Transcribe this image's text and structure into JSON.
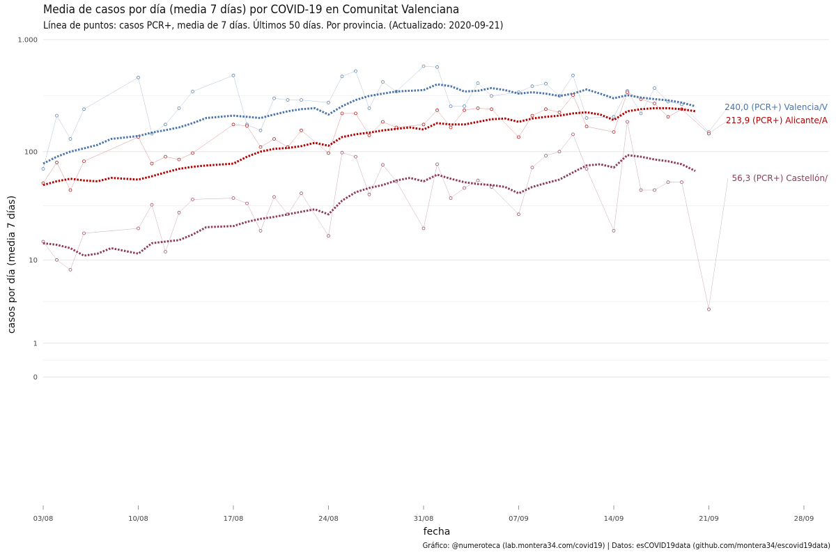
{
  "header": {
    "title": "Media de casos por día (media 7 días) por COVID-19 en Comunitat Valenciana",
    "subtitle": "Línea de puntos: casos PCR+, media de 7 días. Últimos 50 días. Por provincia. (Actualizado: 2020-09-21)"
  },
  "caption": "Gráfico: @numeroteca (lab.montera34.com/covid19) | Datos: esCOVID19data (github.com/montera34/escovid19data)",
  "chart_data": {
    "type": "line",
    "title": "Media de casos por día (media 7 días) por COVID-19 en Comunitat Valenciana",
    "xlabel": "fecha",
    "ylabel": "casos por día (media 7 días)",
    "y_scale": "log",
    "xlim": [
      "2020-08-03",
      "2020-09-30"
    ],
    "x_ticks": [
      {
        "date": "2020-08-03",
        "label": "03/08"
      },
      {
        "date": "2020-08-10",
        "label": "10/08"
      },
      {
        "date": "2020-08-17",
        "label": "17/08"
      },
      {
        "date": "2020-08-24",
        "label": "24/08"
      },
      {
        "date": "2020-08-31",
        "label": "31/08"
      },
      {
        "date": "2020-09-07",
        "label": "07/09"
      },
      {
        "date": "2020-09-14",
        "label": "14/09"
      },
      {
        "date": "2020-09-21",
        "label": "21/09"
      },
      {
        "date": "2020-09-28",
        "label": "28/09"
      }
    ],
    "y_ticks": [
      {
        "value": 0,
        "label": "0"
      },
      {
        "value": 1,
        "label": "1"
      },
      {
        "value": 10,
        "label": "10"
      },
      {
        "value": 100,
        "label": "100"
      },
      {
        "value": 1000,
        "label": "1.000"
      }
    ],
    "grid": true,
    "series": [
      {
        "name": "Valencia/V",
        "end_label": "240,0 (PCR+) Valencia/V",
        "color": "#4a74aa",
        "daily": [
          [
            "2020-08-03",
            70
          ],
          [
            "2020-08-04",
            210
          ],
          [
            "2020-08-05",
            130
          ],
          [
            "2020-08-06",
            240
          ],
          [
            "2020-08-10",
            460
          ],
          [
            "2020-08-11",
            145
          ],
          [
            "2020-08-12",
            175
          ],
          [
            "2020-08-13",
            245
          ],
          [
            "2020-08-14",
            345
          ],
          [
            "2020-08-17",
            480
          ],
          [
            "2020-08-18",
            175
          ],
          [
            "2020-08-19",
            155
          ],
          [
            "2020-08-20",
            300
          ],
          [
            "2020-08-21",
            290
          ],
          [
            "2020-08-22",
            290
          ],
          [
            "2020-08-24",
            275
          ],
          [
            "2020-08-25",
            470
          ],
          [
            "2020-08-26",
            525
          ],
          [
            "2020-08-27",
            245
          ],
          [
            "2020-08-28",
            420
          ],
          [
            "2020-08-29",
            345
          ],
          [
            "2020-08-31",
            580
          ],
          [
            "2020-09-01",
            570
          ],
          [
            "2020-09-02",
            255
          ],
          [
            "2020-09-03",
            255
          ],
          [
            "2020-09-04",
            410
          ],
          [
            "2020-09-05",
            315
          ],
          [
            "2020-09-07",
            340
          ],
          [
            "2020-09-08",
            385
          ],
          [
            "2020-09-09",
            405
          ],
          [
            "2020-09-10",
            315
          ],
          [
            "2020-09-11",
            480
          ],
          [
            "2020-09-12",
            200
          ],
          [
            "2020-09-14",
            205
          ],
          [
            "2020-09-15",
            350
          ],
          [
            "2020-09-16",
            220
          ],
          [
            "2020-09-17",
            370
          ],
          [
            "2020-09-18",
            280
          ],
          [
            "2020-09-19",
            265
          ],
          [
            "2020-09-21",
            150
          ]
        ],
        "avg7": [
          [
            "2020-08-03",
            78
          ],
          [
            "2020-08-04",
            90
          ],
          [
            "2020-08-05",
            100
          ],
          [
            "2020-08-06",
            107
          ],
          [
            "2020-08-07",
            115
          ],
          [
            "2020-08-08",
            130
          ],
          [
            "2020-08-10",
            138
          ],
          [
            "2020-08-11",
            148
          ],
          [
            "2020-08-12",
            156
          ],
          [
            "2020-08-13",
            165
          ],
          [
            "2020-08-14",
            180
          ],
          [
            "2020-08-15",
            200
          ],
          [
            "2020-08-17",
            210
          ],
          [
            "2020-08-18",
            205
          ],
          [
            "2020-08-19",
            200
          ],
          [
            "2020-08-20",
            215
          ],
          [
            "2020-08-21",
            230
          ],
          [
            "2020-08-22",
            240
          ],
          [
            "2020-08-23",
            245
          ],
          [
            "2020-08-24",
            215
          ],
          [
            "2020-08-25",
            255
          ],
          [
            "2020-08-26",
            290
          ],
          [
            "2020-08-27",
            315
          ],
          [
            "2020-08-28",
            330
          ],
          [
            "2020-08-29",
            345
          ],
          [
            "2020-08-30",
            350
          ],
          [
            "2020-08-31",
            355
          ],
          [
            "2020-09-01",
            400
          ],
          [
            "2020-09-02",
            385
          ],
          [
            "2020-09-03",
            345
          ],
          [
            "2020-09-04",
            350
          ],
          [
            "2020-09-05",
            370
          ],
          [
            "2020-09-06",
            355
          ],
          [
            "2020-09-07",
            330
          ],
          [
            "2020-09-08",
            340
          ],
          [
            "2020-09-09",
            330
          ],
          [
            "2020-09-10",
            315
          ],
          [
            "2020-09-11",
            330
          ],
          [
            "2020-09-12",
            360
          ],
          [
            "2020-09-13",
            330
          ],
          [
            "2020-09-14",
            300
          ],
          [
            "2020-09-15",
            320
          ],
          [
            "2020-09-16",
            305
          ],
          [
            "2020-09-17",
            295
          ],
          [
            "2020-09-18",
            288
          ],
          [
            "2020-09-19",
            275
          ],
          [
            "2020-09-20",
            255
          ]
        ]
      },
      {
        "name": "Alicante/A",
        "end_label": "213,9 (PCR+) Alicante/A",
        "color": "#b00000",
        "daily": [
          [
            "2020-08-03",
            52
          ],
          [
            "2020-08-04",
            80
          ],
          [
            "2020-08-05",
            45
          ],
          [
            "2020-08-06",
            82
          ],
          [
            "2020-08-10",
            135
          ],
          [
            "2020-08-11",
            78
          ],
          [
            "2020-08-12",
            90
          ],
          [
            "2020-08-13",
            85
          ],
          [
            "2020-08-14",
            97
          ],
          [
            "2020-08-17",
            175
          ],
          [
            "2020-08-18",
            170
          ],
          [
            "2020-08-19",
            110
          ],
          [
            "2020-08-20",
            130
          ],
          [
            "2020-08-21",
            110
          ],
          [
            "2020-08-22",
            155
          ],
          [
            "2020-08-24",
            97
          ],
          [
            "2020-08-25",
            220
          ],
          [
            "2020-08-26",
            220
          ],
          [
            "2020-08-27",
            140
          ],
          [
            "2020-08-28",
            185
          ],
          [
            "2020-08-29",
            165
          ],
          [
            "2020-08-31",
            175
          ],
          [
            "2020-09-01",
            235
          ],
          [
            "2020-09-02",
            165
          ],
          [
            "2020-09-03",
            235
          ],
          [
            "2020-09-04",
            245
          ],
          [
            "2020-09-05",
            240
          ],
          [
            "2020-09-07",
            135
          ],
          [
            "2020-09-08",
            210
          ],
          [
            "2020-09-09",
            240
          ],
          [
            "2020-09-10",
            225
          ],
          [
            "2020-09-11",
            320
          ],
          [
            "2020-09-12",
            168
          ],
          [
            "2020-09-14",
            150
          ],
          [
            "2020-09-15",
            340
          ],
          [
            "2020-09-16",
            295
          ],
          [
            "2020-09-17",
            270
          ],
          [
            "2020-09-18",
            205
          ],
          [
            "2020-09-19",
            240
          ],
          [
            "2020-09-21",
            145
          ]
        ],
        "avg7": [
          [
            "2020-08-03",
            50
          ],
          [
            "2020-08-04",
            54
          ],
          [
            "2020-08-05",
            57
          ],
          [
            "2020-08-06",
            55
          ],
          [
            "2020-08-07",
            54
          ],
          [
            "2020-08-08",
            58
          ],
          [
            "2020-08-10",
            56
          ],
          [
            "2020-08-11",
            60
          ],
          [
            "2020-08-12",
            65
          ],
          [
            "2020-08-13",
            70
          ],
          [
            "2020-08-14",
            73
          ],
          [
            "2020-08-15",
            75
          ],
          [
            "2020-08-17",
            78
          ],
          [
            "2020-08-18",
            90
          ],
          [
            "2020-08-19",
            100
          ],
          [
            "2020-08-20",
            106
          ],
          [
            "2020-08-21",
            108
          ],
          [
            "2020-08-22",
            112
          ],
          [
            "2020-08-23",
            120
          ],
          [
            "2020-08-24",
            113
          ],
          [
            "2020-08-25",
            135
          ],
          [
            "2020-08-26",
            143
          ],
          [
            "2020-08-27",
            148
          ],
          [
            "2020-08-28",
            155
          ],
          [
            "2020-08-29",
            160
          ],
          [
            "2020-08-30",
            165
          ],
          [
            "2020-08-31",
            158
          ],
          [
            "2020-09-01",
            180
          ],
          [
            "2020-09-02",
            175
          ],
          [
            "2020-09-03",
            175
          ],
          [
            "2020-09-04",
            185
          ],
          [
            "2020-09-05",
            195
          ],
          [
            "2020-09-06",
            198
          ],
          [
            "2020-09-07",
            185
          ],
          [
            "2020-09-08",
            198
          ],
          [
            "2020-09-09",
            205
          ],
          [
            "2020-09-10",
            210
          ],
          [
            "2020-09-11",
            220
          ],
          [
            "2020-09-12",
            225
          ],
          [
            "2020-09-13",
            215
          ],
          [
            "2020-09-14",
            192
          ],
          [
            "2020-09-15",
            230
          ],
          [
            "2020-09-16",
            240
          ],
          [
            "2020-09-17",
            245
          ],
          [
            "2020-09-18",
            245
          ],
          [
            "2020-09-19",
            240
          ],
          [
            "2020-09-20",
            230
          ]
        ]
      },
      {
        "name": "Castellón/",
        "end_label": "56,3 (PCR+) Castellón/",
        "color": "#8e3b5b",
        "daily": [
          [
            "2020-08-03",
            15
          ],
          [
            "2020-08-04",
            10
          ],
          [
            "2020-08-05",
            8
          ],
          [
            "2020-08-06",
            18
          ],
          [
            "2020-08-10",
            20
          ],
          [
            "2020-08-11",
            33
          ],
          [
            "2020-08-12",
            12
          ],
          [
            "2020-08-13",
            28
          ],
          [
            "2020-08-14",
            37
          ],
          [
            "2020-08-17",
            38
          ],
          [
            "2020-08-18",
            34
          ],
          [
            "2020-08-19",
            19
          ],
          [
            "2020-08-20",
            39
          ],
          [
            "2020-08-21",
            27
          ],
          [
            "2020-08-22",
            42
          ],
          [
            "2020-08-24",
            17
          ],
          [
            "2020-08-25",
            98
          ],
          [
            "2020-08-26",
            90
          ],
          [
            "2020-08-27",
            41
          ],
          [
            "2020-08-28",
            76
          ],
          [
            "2020-08-29",
            54
          ],
          [
            "2020-08-31",
            20
          ],
          [
            "2020-09-01",
            77
          ],
          [
            "2020-09-02",
            38
          ],
          [
            "2020-09-03",
            47
          ],
          [
            "2020-09-04",
            55
          ],
          [
            "2020-09-05",
            48
          ],
          [
            "2020-09-07",
            27
          ],
          [
            "2020-09-08",
            72
          ],
          [
            "2020-09-09",
            92
          ],
          [
            "2020-09-10",
            100
          ],
          [
            "2020-09-11",
            143
          ],
          [
            "2020-09-12",
            70
          ],
          [
            "2020-09-14",
            19
          ],
          [
            "2020-09-15",
            185
          ],
          [
            "2020-09-16",
            45
          ],
          [
            "2020-09-17",
            45
          ],
          [
            "2020-09-18",
            53
          ],
          [
            "2020-09-19",
            53
          ],
          [
            "2020-09-21",
            3
          ]
        ],
        "avg7": [
          [
            "2020-08-03",
            14.5
          ],
          [
            "2020-08-04",
            14
          ],
          [
            "2020-08-05",
            13
          ],
          [
            "2020-08-06",
            11
          ],
          [
            "2020-08-07",
            11.5
          ],
          [
            "2020-08-08",
            13
          ],
          [
            "2020-08-10",
            11.5
          ],
          [
            "2020-08-11",
            14.5
          ],
          [
            "2020-08-12",
            15
          ],
          [
            "2020-08-13",
            15.5
          ],
          [
            "2020-08-14",
            17.5
          ],
          [
            "2020-08-15",
            20.5
          ],
          [
            "2020-08-17",
            21
          ],
          [
            "2020-08-18",
            23
          ],
          [
            "2020-08-19",
            24.5
          ],
          [
            "2020-08-20",
            25.5
          ],
          [
            "2020-08-21",
            27
          ],
          [
            "2020-08-22",
            28.5
          ],
          [
            "2020-08-23",
            30
          ],
          [
            "2020-08-24",
            27
          ],
          [
            "2020-08-25",
            36
          ],
          [
            "2020-08-26",
            43
          ],
          [
            "2020-08-27",
            47
          ],
          [
            "2020-08-28",
            50
          ],
          [
            "2020-08-29",
            55
          ],
          [
            "2020-08-30",
            58
          ],
          [
            "2020-08-31",
            54
          ],
          [
            "2020-09-01",
            62
          ],
          [
            "2020-09-02",
            57
          ],
          [
            "2020-09-03",
            53
          ],
          [
            "2020-09-04",
            51
          ],
          [
            "2020-09-05",
            50
          ],
          [
            "2020-09-06",
            48
          ],
          [
            "2020-09-07",
            42
          ],
          [
            "2020-09-08",
            48
          ],
          [
            "2020-09-09",
            52
          ],
          [
            "2020-09-10",
            56
          ],
          [
            "2020-09-11",
            65
          ],
          [
            "2020-09-12",
            75
          ],
          [
            "2020-09-13",
            77
          ],
          [
            "2020-09-14",
            72
          ],
          [
            "2020-09-15",
            93
          ],
          [
            "2020-09-16",
            90
          ],
          [
            "2020-09-17",
            85
          ],
          [
            "2020-09-18",
            82
          ],
          [
            "2020-09-19",
            77
          ],
          [
            "2020-09-20",
            67
          ]
        ]
      }
    ]
  }
}
